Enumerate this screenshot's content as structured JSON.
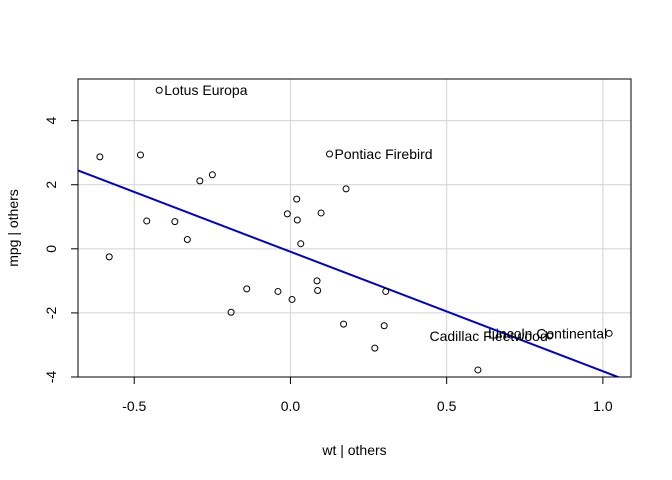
{
  "chart_data": {
    "type": "scatter",
    "xlabel": "wt | others",
    "ylabel": "mpg | others",
    "xlim": [
      -0.68,
      1.09
    ],
    "ylim": [
      -4.0,
      5.3
    ],
    "xticks": [
      -0.5,
      0.0,
      0.5,
      1.0
    ],
    "xtick_labels": [
      "-0.5",
      "0.0",
      "0.5",
      "1.0"
    ],
    "yticks": [
      -4,
      -2,
      0,
      2,
      4
    ],
    "ytick_labels": [
      "-4",
      "-2",
      "0",
      "2",
      "4"
    ],
    "grid": true,
    "points": [
      {
        "x": -0.42,
        "y": 4.95
      },
      {
        "x": -0.61,
        "y": 2.87
      },
      {
        "x": -0.48,
        "y": 2.93
      },
      {
        "x": -0.58,
        "y": -0.25
      },
      {
        "x": -0.46,
        "y": 0.87
      },
      {
        "x": -0.37,
        "y": 0.85
      },
      {
        "x": -0.33,
        "y": 0.29
      },
      {
        "x": -0.29,
        "y": 2.12
      },
      {
        "x": -0.25,
        "y": 2.31
      },
      {
        "x": -0.19,
        "y": -1.98
      },
      {
        "x": -0.14,
        "y": -1.25
      },
      {
        "x": -0.04,
        "y": -1.33
      },
      {
        "x": -0.01,
        "y": 1.09
      },
      {
        "x": 0.005,
        "y": -1.58
      },
      {
        "x": 0.02,
        "y": 1.55
      },
      {
        "x": 0.022,
        "y": 0.9
      },
      {
        "x": 0.033,
        "y": 0.16
      },
      {
        "x": 0.085,
        "y": -1.0
      },
      {
        "x": 0.087,
        "y": -1.3
      },
      {
        "x": 0.098,
        "y": 1.12
      },
      {
        "x": 0.125,
        "y": 2.96
      },
      {
        "x": 0.17,
        "y": -2.35
      },
      {
        "x": 0.178,
        "y": 1.87
      },
      {
        "x": 0.27,
        "y": -3.1
      },
      {
        "x": 0.3,
        "y": -2.4
      },
      {
        "x": 0.305,
        "y": -1.33
      },
      {
        "x": 0.6,
        "y": -3.78
      },
      {
        "x": 0.83,
        "y": -2.72
      },
      {
        "x": 1.02,
        "y": -2.64
      }
    ],
    "labels": [
      {
        "text": "Lotus Europa",
        "x": -0.42,
        "y": 4.95
      },
      {
        "text": "Pontiac Firebird",
        "x": 0.125,
        "y": 2.96
      },
      {
        "text": "Cadillac Fleetwood",
        "x": 0.83,
        "y": -2.72
      },
      {
        "text": "Lincoln Continental",
        "x": 1.02,
        "y": -2.64
      }
    ],
    "fit_line": {
      "intercept": -0.09,
      "slope": -3.73,
      "color": "#0000cd"
    },
    "colors": {
      "points": "#000000",
      "grid": "#d3d3d3",
      "box": "#000000"
    }
  }
}
